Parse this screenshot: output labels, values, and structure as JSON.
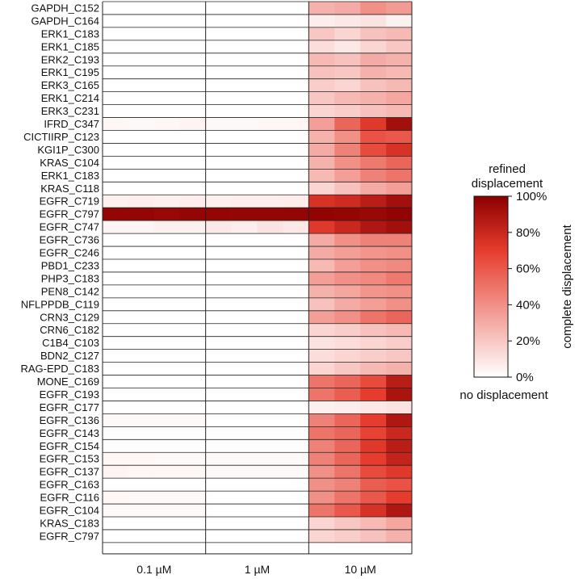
{
  "chart_data": {
    "type": "heatmap",
    "rows": [
      "GAPDH_C152",
      "GAPDH_C164",
      "ERK1_C183",
      "ERK1_C185",
      "ERK2_C193",
      "ERK1_C195",
      "ERK3_C165",
      "ERK1_C214",
      "ERK3_C231",
      "IFRD_C347",
      "CICTIIRP_C123",
      "KGI1P_C300",
      "KRAS_C104",
      "ERK1_C183",
      "KRAS_C118",
      "EGFR_C719",
      "EGFR_C797",
      "EGFR_C747",
      "EGFR_C736",
      "EGFR_C246",
      "PBD1_C233",
      "PHP3_C183",
      "PEN8_C142",
      "NFLPPDB_C119",
      "CRN3_C129",
      "CRN6_C182",
      "C1B4_C103",
      "BDN2_C127",
      "RAG-EPD_C183",
      "MONE_C169",
      "EGFR_C193",
      "EGFR_C177",
      "EGFR_C136",
      "EGFR_C143",
      "EGFR_C154",
      "EGFR_C153",
      "EGFR_C137",
      "EGFR_C163",
      "EGFR_C116",
      "EGFR_C104",
      "KRAS_C183",
      "EGFR_C797"
    ],
    "column_groups": [
      "0.1 µM",
      "1 µM",
      "10 µM"
    ],
    "replicates_per_group": 4,
    "values": [
      [
        0,
        0,
        0,
        0,
        0,
        0,
        0,
        0,
        0.28,
        0.3,
        0.4,
        0.36
      ],
      [
        0,
        0,
        0,
        0,
        0,
        0,
        0,
        0,
        0.06,
        0.08,
        0.1,
        0.05
      ],
      [
        0,
        0,
        0,
        0,
        0,
        0,
        0,
        0,
        0.2,
        0.15,
        0.22,
        0.25
      ],
      [
        0,
        0,
        0,
        0,
        0,
        0,
        0,
        0,
        0.12,
        0.08,
        0.15,
        0.2
      ],
      [
        0,
        0,
        0,
        0,
        0,
        0,
        0,
        0,
        0.25,
        0.22,
        0.3,
        0.28
      ],
      [
        0,
        0,
        0,
        0,
        0,
        0,
        0,
        0,
        0.22,
        0.2,
        0.28,
        0.25
      ],
      [
        0,
        0,
        0,
        0,
        0,
        0,
        0,
        0,
        0.18,
        0.15,
        0.22,
        0.25
      ],
      [
        0,
        0,
        0,
        0,
        0,
        0,
        0,
        0,
        0.2,
        0.25,
        0.28,
        0.32
      ],
      [
        0,
        0,
        0,
        0,
        0,
        0,
        0,
        0,
        0.15,
        0.18,
        0.22,
        0.25
      ],
      [
        0.03,
        0.02,
        0.03,
        0.04,
        0.02,
        0.02,
        0.03,
        0.03,
        0.35,
        0.55,
        0.72,
        0.92
      ],
      [
        0,
        0,
        0,
        0,
        0,
        0,
        0,
        0,
        0.28,
        0.4,
        0.62,
        0.6
      ],
      [
        0,
        0,
        0,
        0,
        0,
        0,
        0,
        0,
        0.3,
        0.45,
        0.65,
        0.75
      ],
      [
        0,
        0,
        0,
        0,
        0,
        0,
        0,
        0,
        0.28,
        0.4,
        0.48,
        0.55
      ],
      [
        0,
        0,
        0,
        0,
        0,
        0,
        0,
        0,
        0.25,
        0.35,
        0.45,
        0.5
      ],
      [
        0,
        0,
        0,
        0,
        0,
        0,
        0,
        0,
        0.15,
        0.22,
        0.3,
        0.35
      ],
      [
        0.05,
        0.06,
        0.05,
        0.06,
        0.05,
        0.06,
        0.06,
        0.07,
        0.75,
        0.78,
        0.85,
        0.92
      ],
      [
        0.97,
        0.97,
        0.96,
        0.97,
        0.97,
        0.97,
        0.97,
        0.97,
        0.98,
        0.97,
        0.96,
        0.98
      ],
      [
        0.04,
        0.04,
        0.05,
        0.05,
        0.08,
        0.06,
        0.1,
        0.08,
        0.72,
        0.8,
        0.88,
        0.92
      ],
      [
        0,
        0,
        0,
        0,
        0,
        0,
        0,
        0,
        0.3,
        0.4,
        0.45,
        0.45
      ],
      [
        0,
        0,
        0,
        0,
        0,
        0,
        0,
        0,
        0.3,
        0.35,
        0.38,
        0.4
      ],
      [
        0,
        0,
        0,
        0,
        0,
        0,
        0,
        0,
        0.25,
        0.35,
        0.4,
        0.42
      ],
      [
        0,
        0,
        0,
        0,
        0,
        0,
        0,
        0,
        0.35,
        0.4,
        0.42,
        0.48
      ],
      [
        0,
        0,
        0,
        0,
        0,
        0,
        0,
        0,
        0.28,
        0.32,
        0.38,
        0.4
      ],
      [
        0,
        0,
        0,
        0,
        0,
        0,
        0,
        0,
        0.22,
        0.3,
        0.35,
        0.4
      ],
      [
        0,
        0,
        0,
        0,
        0,
        0,
        0,
        0,
        0.35,
        0.4,
        0.5,
        0.55
      ],
      [
        0,
        0,
        0,
        0,
        0,
        0,
        0,
        0,
        0.15,
        0.18,
        0.22,
        0.25
      ],
      [
        0,
        0,
        0,
        0,
        0,
        0,
        0,
        0,
        0.1,
        0.12,
        0.15,
        0.18
      ],
      [
        0,
        0,
        0,
        0,
        0,
        0,
        0,
        0,
        0.12,
        0.15,
        0.18,
        0.2
      ],
      [
        0,
        0,
        0,
        0,
        0,
        0,
        0,
        0,
        0.15,
        0.2,
        0.25,
        0.28
      ],
      [
        0,
        0,
        0,
        0,
        0,
        0,
        0,
        0,
        0.5,
        0.55,
        0.65,
        0.85
      ],
      [
        0,
        0,
        0,
        0,
        0,
        0,
        0,
        0,
        0.5,
        0.58,
        0.7,
        0.9
      ],
      [
        0,
        0,
        0,
        0,
        0,
        0,
        0,
        0,
        0.05,
        0.06,
        0.08,
        0.1
      ],
      [
        0.02,
        0.02,
        0.02,
        0.02,
        0,
        0,
        0,
        0,
        0.45,
        0.55,
        0.7,
        0.88
      ],
      [
        0,
        0,
        0,
        0,
        0,
        0,
        0,
        0,
        0.5,
        0.55,
        0.68,
        0.8
      ],
      [
        0,
        0,
        0,
        0,
        0,
        0,
        0,
        0,
        0.45,
        0.55,
        0.72,
        0.85
      ],
      [
        0.03,
        0.03,
        0.02,
        0.02,
        0.02,
        0.02,
        0.02,
        0.02,
        0.45,
        0.55,
        0.7,
        0.82
      ],
      [
        0.04,
        0.03,
        0.03,
        0.03,
        0.02,
        0.02,
        0.02,
        0.02,
        0.4,
        0.5,
        0.65,
        0.72
      ],
      [
        0,
        0,
        0,
        0,
        0,
        0,
        0,
        0,
        0.4,
        0.45,
        0.58,
        0.62
      ],
      [
        0.03,
        0.02,
        0.02,
        0.02,
        0,
        0,
        0,
        0,
        0.4,
        0.5,
        0.6,
        0.7
      ],
      [
        0.02,
        0.02,
        0.02,
        0.02,
        0,
        0,
        0,
        0,
        0.5,
        0.6,
        0.75,
        0.88
      ],
      [
        0,
        0,
        0,
        0,
        0,
        0,
        0,
        0,
        0.15,
        0.2,
        0.25,
        0.32
      ],
      [
        0,
        0,
        0,
        0,
        0,
        0,
        0,
        0,
        0.15,
        0.18,
        0.22,
        0.28
      ]
    ],
    "value_range": [
      0,
      1
    ],
    "colorscale": {
      "low": "#ffffff",
      "high": "#8b0000"
    },
    "legend": {
      "title_line1": "refined",
      "title_line2": "displacement",
      "ticks": [
        "0%",
        "20%",
        "40%",
        "60%",
        "80%",
        "100%"
      ],
      "tick_values": [
        0,
        0.2,
        0.4,
        0.6,
        0.8,
        1.0
      ],
      "side_label": "complete displacement",
      "bottom_label": "no displacement",
      "placement": "right"
    }
  }
}
